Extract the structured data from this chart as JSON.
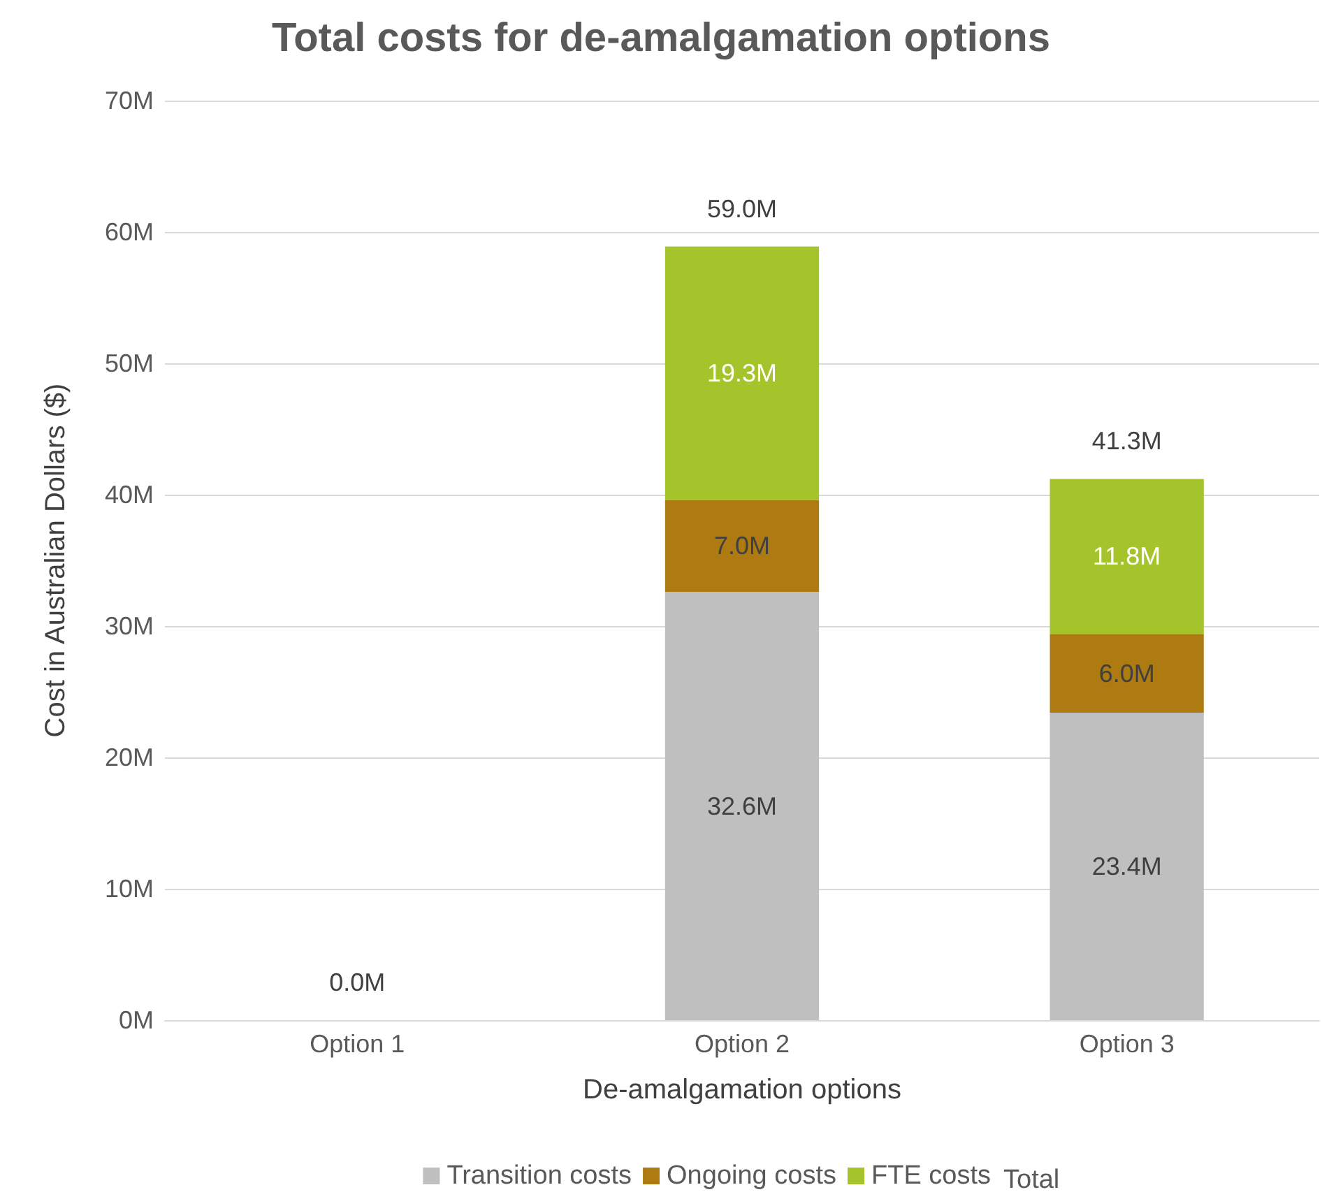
{
  "chart_data": {
    "type": "bar",
    "title": "Total costs for de-amalgamation options",
    "xlabel": "De-amalgamation options",
    "ylabel": "Cost in Australian Dollars ($)",
    "categories": [
      "Option 1",
      "Option 2",
      "Option 3"
    ],
    "stacked": true,
    "series": [
      {
        "name": "Transition costs",
        "color": "#bfbfbf",
        "values": [
          0,
          32.6,
          23.4
        ],
        "value_labels": [
          null,
          "32.6M",
          "23.4M"
        ]
      },
      {
        "name": "Ongoing costs",
        "color": "#ae7a12",
        "values": [
          0,
          7.0,
          6.0
        ],
        "value_labels": [
          null,
          "7.0M",
          "6.0M"
        ]
      },
      {
        "name": "FTE costs",
        "color": "#a5c42c",
        "values": [
          0,
          19.3,
          11.8
        ],
        "value_labels": [
          null,
          "19.3M",
          "11.8M"
        ]
      }
    ],
    "totals": [
      "0.0M",
      "59.0M",
      "41.3M"
    ],
    "annotations": [
      "Total"
    ],
    "ylim": [
      0,
      70
    ],
    "yticks": [
      {
        "value": 0,
        "label": "0M"
      },
      {
        "value": 10,
        "label": "10M"
      },
      {
        "value": 20,
        "label": "20M"
      },
      {
        "value": 30,
        "label": "30M"
      },
      {
        "value": 40,
        "label": "40M"
      },
      {
        "value": 50,
        "label": "50M"
      },
      {
        "value": 60,
        "label": "60M"
      },
      {
        "value": 70,
        "label": "70M"
      }
    ],
    "grid": "y",
    "legend": "bottom"
  }
}
